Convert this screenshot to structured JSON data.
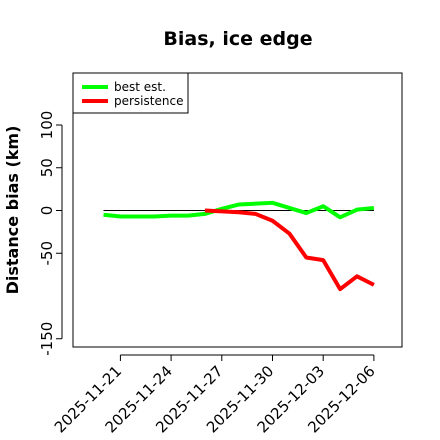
{
  "chart_data": {
    "type": "line",
    "title": "Bias, ice edge",
    "xlabel": "",
    "ylabel": "Distance bias (km)",
    "x": [
      "2025-11-20",
      "2025-11-21",
      "2025-11-22",
      "2025-11-23",
      "2025-11-24",
      "2025-11-25",
      "2025-11-26",
      "2025-11-27",
      "2025-11-28",
      "2025-11-29",
      "2025-11-30",
      "2025-12-01",
      "2025-12-02",
      "2025-12-03",
      "2025-12-04",
      "2025-12-05",
      "2025-12-06"
    ],
    "xticks": [
      "2025-11-21",
      "2025-11-24",
      "2025-11-27",
      "2025-11-30",
      "2025-12-03",
      "2025-12-06"
    ],
    "yticks": [
      -150,
      -50,
      0,
      50,
      100
    ],
    "ylim": [
      -160,
      160
    ],
    "reference_line": 0,
    "series": [
      {
        "name": "best est.",
        "color": "#00ff00",
        "values": [
          -5,
          -7,
          -7,
          -7,
          -6,
          -6,
          -4,
          2,
          7,
          8,
          9,
          3,
          -3,
          5,
          -8,
          1,
          3
        ]
      },
      {
        "name": "persistence",
        "color": "#ff0000",
        "values": [
          null,
          null,
          null,
          null,
          null,
          null,
          0,
          -1,
          -2,
          -4,
          -12,
          -27,
          -55,
          -58,
          -92,
          -77,
          -87
        ]
      }
    ],
    "legend": "top-left",
    "grid": false
  }
}
